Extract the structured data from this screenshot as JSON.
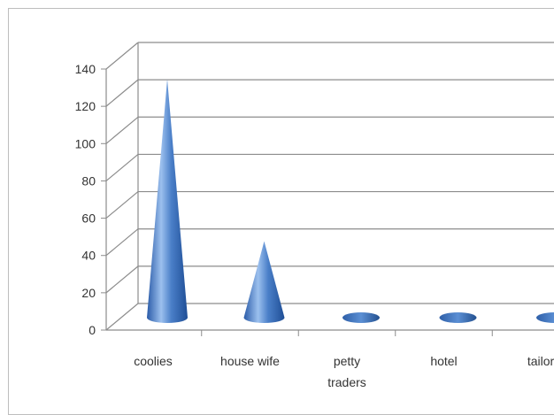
{
  "chart_data": {
    "type": "bar",
    "style": "3d-cone",
    "categories": [
      [
        "coolies"
      ],
      [
        "house wife"
      ],
      [
        "petty",
        "traders"
      ],
      [
        "hotel"
      ],
      [
        "tailor"
      ]
    ],
    "values": [
      128,
      41,
      1,
      1,
      1
    ],
    "ylim": [
      0,
      140
    ],
    "yticks": [
      "0",
      "20",
      "40",
      "60",
      "80",
      "100",
      "120",
      "140"
    ],
    "grid": true,
    "legend": "none",
    "colors": {
      "cone": "#4a7fc8",
      "cone_dark": "#1f4e96",
      "cone_light": "#9cc0ee",
      "grid": "#8c8c8c",
      "axis": "#8c8c8c"
    }
  }
}
